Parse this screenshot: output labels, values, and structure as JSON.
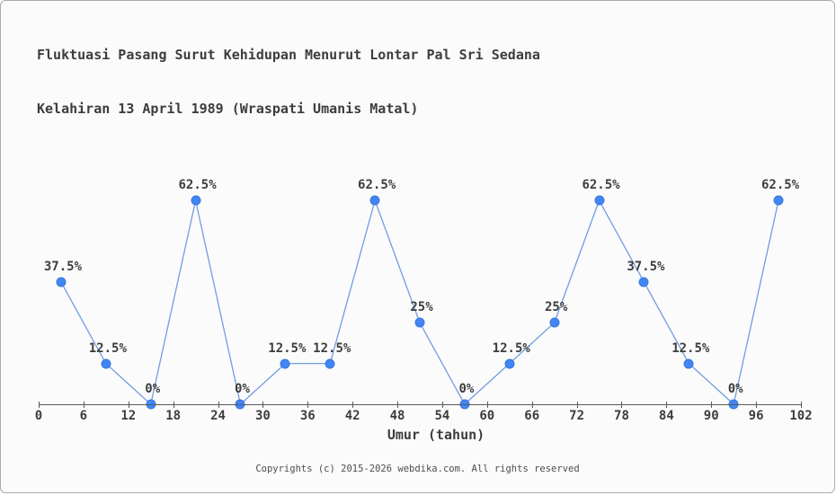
{
  "frame": {
    "title_line1": "Fluktuasi Pasang Surut Kehidupan Menurut Lontar Pal Sri Sedana",
    "title_line2": "Kelahiran 13 April 1989 (Wraspati Umanis Matal)",
    "footer": "Copyrights (c) 2015-2026 webdika.com. All rights reserved"
  },
  "colors": {
    "background": "#fbfbfb",
    "frame_border": "#ababab",
    "text": "#3d3d3d",
    "axis": "#5a5a5a",
    "line": "#6f9de2",
    "marker_fill": "#4285f4",
    "marker_edge": "#3a79dd",
    "footer_text": "#4d4d4d"
  },
  "chart_data": {
    "type": "line",
    "title": "Fluktuasi Pasang Surut Kehidupan Menurut Lontar Pal Sri Sedana Kelahiran 13 April 1989 (Wraspati Umanis Matal)",
    "xlabel": "Umur (tahun)",
    "ylabel": "",
    "x": [
      3,
      9,
      15,
      21,
      27,
      33,
      39,
      45,
      51,
      57,
      63,
      69,
      75,
      81,
      87,
      93,
      99
    ],
    "values": [
      37.5,
      12.5,
      0,
      62.5,
      0,
      12.5,
      12.5,
      62.5,
      25,
      0,
      12.5,
      25,
      62.5,
      37.5,
      12.5,
      0,
      62.5
    ],
    "point_labels": [
      "37.5%",
      "12.5%",
      "0%",
      "62.5%",
      "0%",
      "12.5%",
      "12.5%",
      "62.5%",
      "25%",
      "0%",
      "12.5%",
      "25%",
      "62.5%",
      "37.5%",
      "12.5%",
      "0%",
      "62.5%"
    ],
    "x_ticks": [
      0,
      6,
      12,
      18,
      24,
      30,
      36,
      42,
      48,
      54,
      60,
      66,
      72,
      78,
      84,
      90,
      96,
      102
    ],
    "xlim": [
      0,
      102
    ],
    "ylim": [
      0,
      70
    ],
    "grid": false,
    "legend": "none"
  }
}
